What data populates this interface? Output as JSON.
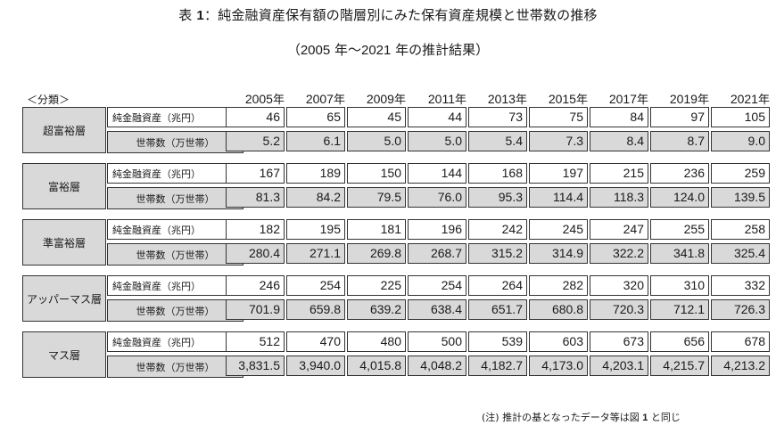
{
  "title": {
    "prefix": "表",
    "number": "1",
    "text": "：純金融資産保有額の階層別にみた保有資産規模と世帯数の推移"
  },
  "subtitle": {
    "open": "（",
    "start": "2005",
    "mid": " 年～",
    "end": "2021",
    "close": " 年の推計結果）"
  },
  "category_header": "＜分類＞",
  "years": [
    {
      "num": "2005",
      "suffix": "年"
    },
    {
      "num": "2007",
      "suffix": "年"
    },
    {
      "num": "2009",
      "suffix": "年"
    },
    {
      "num": "2011",
      "suffix": "年"
    },
    {
      "num": "2013",
      "suffix": "年"
    },
    {
      "num": "2015",
      "suffix": "年"
    },
    {
      "num": "2017",
      "suffix": "年"
    },
    {
      "num": "2019",
      "suffix": "年"
    },
    {
      "num": "2021",
      "suffix": "年"
    }
  ],
  "row_labels": {
    "assets": "純金融資産（兆円）",
    "households": "世帯数（万世帯）"
  },
  "groups": [
    {
      "name": "超富裕層",
      "assets": [
        "46",
        "65",
        "45",
        "44",
        "73",
        "75",
        "84",
        "97",
        "105"
      ],
      "households": [
        "5.2",
        "6.1",
        "5.0",
        "5.0",
        "5.4",
        "7.3",
        "8.4",
        "8.7",
        "9.0"
      ]
    },
    {
      "name": "富裕層",
      "assets": [
        "167",
        "189",
        "150",
        "144",
        "168",
        "197",
        "215",
        "236",
        "259"
      ],
      "households": [
        "81.3",
        "84.2",
        "79.5",
        "76.0",
        "95.3",
        "114.4",
        "118.3",
        "124.0",
        "139.5"
      ]
    },
    {
      "name": "準富裕層",
      "assets": [
        "182",
        "195",
        "181",
        "196",
        "242",
        "245",
        "247",
        "255",
        "258"
      ],
      "households": [
        "280.4",
        "271.1",
        "269.8",
        "268.7",
        "315.2",
        "314.9",
        "322.2",
        "341.8",
        "325.4"
      ]
    },
    {
      "name": "アッパーマス層",
      "assets": [
        "246",
        "254",
        "225",
        "254",
        "264",
        "282",
        "320",
        "310",
        "332"
      ],
      "households": [
        "701.9",
        "659.8",
        "639.2",
        "638.4",
        "651.7",
        "680.8",
        "720.3",
        "712.1",
        "726.3"
      ]
    },
    {
      "name": "マス層",
      "assets": [
        "512",
        "470",
        "480",
        "500",
        "539",
        "603",
        "673",
        "656",
        "678"
      ],
      "households": [
        "3,831.5",
        "3,940.0",
        "4,015.8",
        "4,048.2",
        "4,182.7",
        "4,173.0",
        "4,203.1",
        "4,215.7",
        "4,213.2"
      ]
    }
  ],
  "note": {
    "prefix": "(注) 推計の基となったデータ等は図 ",
    "number": "1",
    "suffix": " と同じ"
  }
}
